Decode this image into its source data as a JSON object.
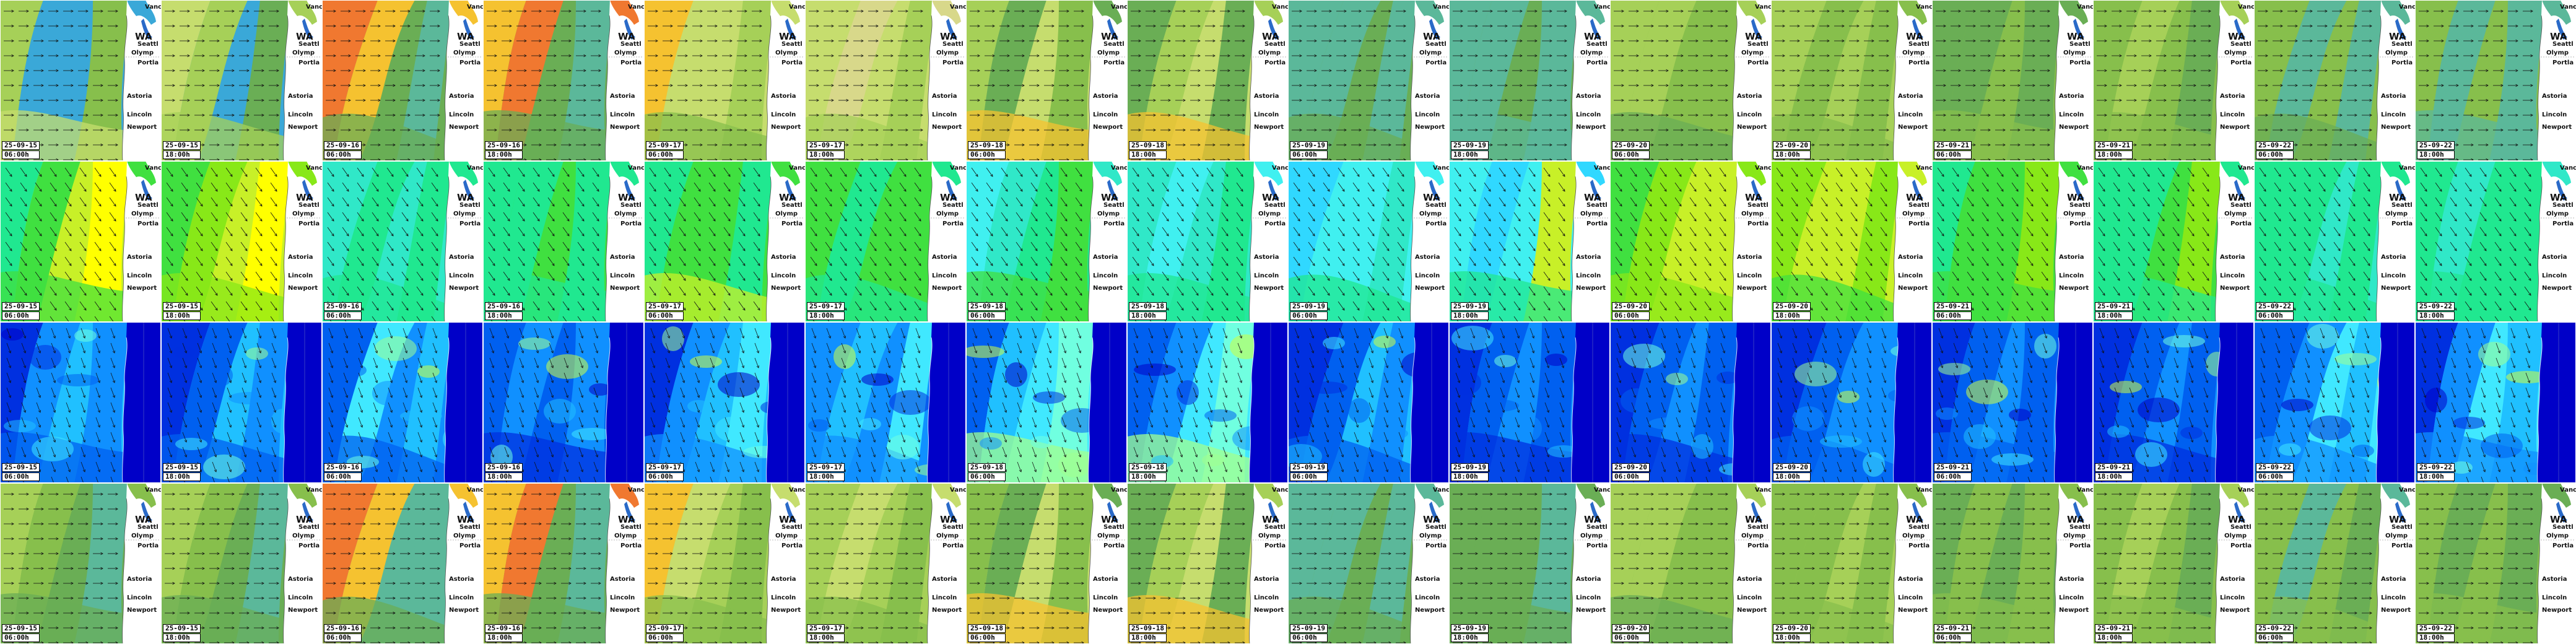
{
  "panel_colors": {
    "wind": [
      "#f0eccf",
      "#d8d88a",
      "#c6dd6e",
      "#a6d058",
      "#87bf4c",
      "#6aae55",
      "#5bb89a",
      "#3aa8d8",
      "#f5c230",
      "#f07830",
      "#e8401c"
    ],
    "wave": [
      "#ffff00",
      "#c8f028",
      "#88e818",
      "#40e040",
      "#20e890",
      "#30e8c8",
      "#40f0f0",
      "#30d8ff"
    ],
    "swell": [
      "#0000c8",
      "#0030e0",
      "#0060f0",
      "#1090ff",
      "#20c0ff",
      "#40e8ff",
      "#70ffe0",
      "#a0ff90",
      "#d0ff40"
    ]
  },
  "place_labels": {
    "wa": "WA",
    "city_1": "Vancou",
    "city_2": "Seattl",
    "city_3": "Olymp",
    "city_4": "Portla",
    "city_5": "Astoria",
    "city_6": "Lincoln",
    "city_7": "Newport"
  },
  "rows": [
    {
      "layer": "wind",
      "tiles": [
        {
          "date": "25-09-15",
          "time": "06:00h"
        },
        {
          "date": "25-09-15",
          "time": "18:00h"
        },
        {
          "date": "25-09-16",
          "time": "06:00h"
        },
        {
          "date": "25-09-16",
          "time": "18:00h"
        },
        {
          "date": "25-09-17",
          "time": "06:00h"
        },
        {
          "date": "25-09-17",
          "time": "18:00h"
        },
        {
          "date": "25-09-18",
          "time": "06:00h"
        },
        {
          "date": "25-09-18",
          "time": "18:00h"
        },
        {
          "date": "25-09-19",
          "time": "06:00h"
        },
        {
          "date": "25-09-19",
          "time": "18:00h"
        },
        {
          "date": "25-09-20",
          "time": "06:00h"
        },
        {
          "date": "25-09-20",
          "time": "18:00h"
        },
        {
          "date": "25-09-21",
          "time": "06:00h"
        },
        {
          "date": "25-09-21",
          "time": "18:00h"
        },
        {
          "date": "25-09-22",
          "time": "06:00h"
        },
        {
          "date": "25-09-22",
          "time": "18:00h"
        }
      ]
    },
    {
      "layer": "wave",
      "tiles": [
        {
          "date": "25-09-15",
          "time": "06:00h"
        },
        {
          "date": "25-09-15",
          "time": "18:00h"
        },
        {
          "date": "25-09-16",
          "time": "06:00h"
        },
        {
          "date": "25-09-16",
          "time": "18:00h"
        },
        {
          "date": "25-09-17",
          "time": "06:00h"
        },
        {
          "date": "25-09-17",
          "time": "18:00h"
        },
        {
          "date": "25-09-18",
          "time": "06:00h"
        },
        {
          "date": "25-09-18",
          "time": "18:00h"
        },
        {
          "date": "25-09-19",
          "time": "06:00h"
        },
        {
          "date": "25-09-19",
          "time": "18:00h"
        },
        {
          "date": "25-09-20",
          "time": "06:00h"
        },
        {
          "date": "25-09-20",
          "time": "18:00h"
        },
        {
          "date": "25-09-21",
          "time": "06:00h"
        },
        {
          "date": "25-09-21",
          "time": "18:00h"
        },
        {
          "date": "25-09-22",
          "time": "06:00h"
        },
        {
          "date": "25-09-22",
          "time": "18:00h"
        }
      ]
    },
    {
      "layer": "swell",
      "tiles": [
        {
          "date": "25-09-15",
          "time": "06:00h"
        },
        {
          "date": "25-09-15",
          "time": "18:00h"
        },
        {
          "date": "25-09-16",
          "time": "06:00h"
        },
        {
          "date": "25-09-16",
          "time": "18:00h"
        },
        {
          "date": "25-09-17",
          "time": "06:00h"
        },
        {
          "date": "25-09-17",
          "time": "18:00h"
        },
        {
          "date": "25-09-18",
          "time": "06:00h"
        },
        {
          "date": "25-09-18",
          "time": "18:00h"
        },
        {
          "date": "25-09-19",
          "time": "06:00h"
        },
        {
          "date": "25-09-19",
          "time": "18:00h"
        },
        {
          "date": "25-09-20",
          "time": "06:00h"
        },
        {
          "date": "25-09-20",
          "time": "18:00h"
        },
        {
          "date": "25-09-21",
          "time": "06:00h"
        },
        {
          "date": "25-09-21",
          "time": "18:00h"
        },
        {
          "date": "25-09-22",
          "time": "06:00h"
        },
        {
          "date": "25-09-22",
          "time": "18:00h"
        }
      ]
    },
    {
      "layer": "wind",
      "tiles": [
        {
          "date": "25-09-15",
          "time": "06:00h"
        },
        {
          "date": "25-09-15",
          "time": "18:00h"
        },
        {
          "date": "25-09-16",
          "time": "06:00h"
        },
        {
          "date": "25-09-16",
          "time": "18:00h"
        },
        {
          "date": "25-09-17",
          "time": "06:00h"
        },
        {
          "date": "25-09-17",
          "time": "18:00h"
        },
        {
          "date": "25-09-18",
          "time": "06:00h"
        },
        {
          "date": "25-09-18",
          "time": "18:00h"
        },
        {
          "date": "25-09-19",
          "time": "06:00h"
        },
        {
          "date": "25-09-19",
          "time": "18:00h"
        },
        {
          "date": "25-09-20",
          "time": "06:00h"
        },
        {
          "date": "25-09-20",
          "time": "18:00h"
        },
        {
          "date": "25-09-21",
          "time": "06:00h"
        },
        {
          "date": "25-09-21",
          "time": "18:00h"
        },
        {
          "date": "25-09-22",
          "time": "06:00h"
        },
        {
          "date": "25-09-22",
          "time": "18:00h"
        }
      ]
    }
  ]
}
